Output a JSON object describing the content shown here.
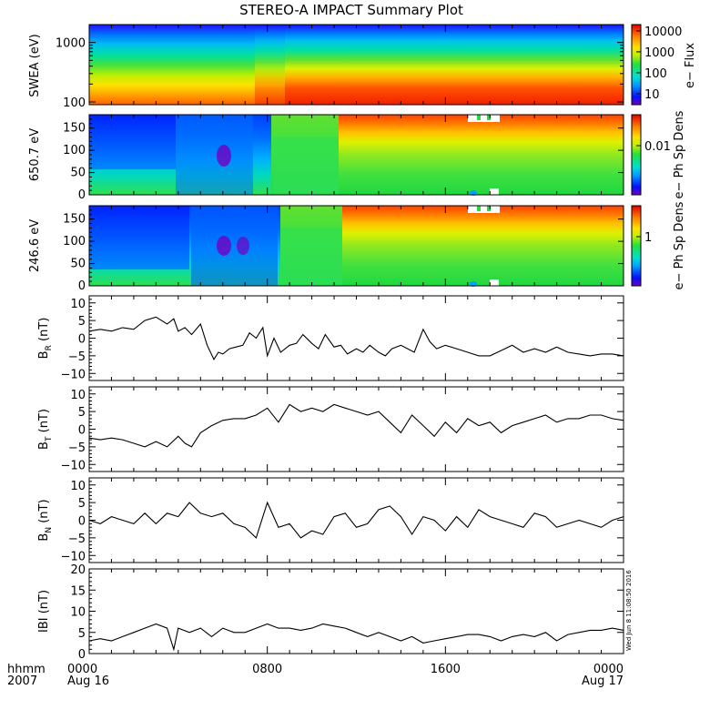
{
  "title": "STEREO-A IMPACT Summary Plot",
  "footer": {
    "hhmm": "hhmm",
    "year": "2007"
  },
  "stamp": "Wed Jun  8 11:08:50 2016",
  "chart_data": [
    {
      "type": "heatmap",
      "ylabel": "SWEA (eV)",
      "y_scale": "log",
      "ylim": [
        90,
        2000
      ],
      "yticks": [
        "1000",
        "100"
      ],
      "colorbar_label": "e− Flux",
      "colorbar_scale": "log",
      "colorbar_ticks": [
        "10000",
        "1000",
        "100",
        "10"
      ],
      "colorbar_range": [
        3,
        20000
      ]
    },
    {
      "type": "heatmap",
      "ylabel": "650.7 eV",
      "ylim": [
        0,
        180
      ],
      "yticks": [
        "150",
        "100",
        "50",
        "0"
      ],
      "colorbar_label": "e− Ph Sp Dens",
      "colorbar_scale": "log",
      "colorbar_ticks": [
        "0.01"
      ]
    },
    {
      "type": "heatmap",
      "ylabel": "246.6 eV",
      "ylim": [
        0,
        180
      ],
      "yticks": [
        "150",
        "100",
        "50",
        "0"
      ],
      "colorbar_label": "e− Ph Sp Dens",
      "colorbar_scale": "log",
      "colorbar_ticks": [
        "1"
      ]
    },
    {
      "type": "line",
      "ylabel": "B",
      "ylabel_sub": "R",
      "ylabel_unit": "(nT)",
      "ylim": [
        -12,
        12
      ],
      "yticks": [
        "10",
        "5",
        "0",
        "−5",
        "−10"
      ],
      "ytick_values": [
        10,
        5,
        0,
        -5,
        -10
      ],
      "x": [
        0,
        0.5,
        1,
        1.5,
        2,
        2.5,
        3,
        3.5,
        3.8,
        4,
        4.3,
        4.6,
        5,
        5.3,
        5.6,
        5.8,
        6,
        6.3,
        6.6,
        6.9,
        7.2,
        7.5,
        7.8,
        8,
        8.3,
        8.6,
        9,
        9.3,
        9.6,
        10,
        10.3,
        10.6,
        11,
        11.3,
        11.6,
        12,
        12.3,
        12.6,
        13,
        13.3,
        13.6,
        14,
        14.3,
        14.6,
        15,
        15.3,
        15.6,
        16,
        16.5,
        17,
        17.5,
        18,
        18.5,
        19,
        19.5,
        20,
        20.5,
        21,
        21.5,
        22,
        22.5,
        23,
        23.5,
        24
      ],
      "y": [
        2,
        2.5,
        2,
        3,
        2.5,
        5,
        6,
        4,
        5.5,
        2,
        3,
        1,
        4,
        -2,
        -6,
        -4,
        -4.5,
        -3,
        -2.5,
        -2,
        1.5,
        0,
        3,
        -5,
        0,
        -4,
        -2,
        -1.5,
        1,
        -1.5,
        -3,
        1,
        -2.5,
        -2,
        -4.5,
        -3,
        -4,
        -2,
        -4,
        -5,
        -3,
        -2,
        -3,
        -4,
        2.5,
        -1,
        -3,
        -2,
        -3,
        -4,
        -5,
        -5,
        -3.5,
        -2,
        -4,
        -3,
        -4,
        -2.5,
        -4,
        -4.5,
        -5,
        -4.5,
        -4.5,
        -5
      ]
    },
    {
      "type": "line",
      "ylabel": "B",
      "ylabel_sub": "T",
      "ylabel_unit": "(nT)",
      "ylim": [
        -12,
        12
      ],
      "yticks": [
        "10",
        "5",
        "0",
        "−5",
        "−10"
      ],
      "ytick_values": [
        10,
        5,
        0,
        -5,
        -10
      ],
      "x": [
        0,
        0.5,
        1,
        1.5,
        2,
        2.5,
        3,
        3.5,
        4,
        4.3,
        4.6,
        5,
        5.5,
        6,
        6.5,
        7,
        7.5,
        8,
        8.5,
        9,
        9.5,
        10,
        10.5,
        11,
        11.5,
        12,
        12.5,
        13,
        13.5,
        14,
        14.5,
        15,
        15.5,
        16,
        16.5,
        17,
        17.5,
        18,
        18.5,
        19,
        19.5,
        20,
        20.5,
        21,
        21.5,
        22,
        22.5,
        23,
        23.5,
        24
      ],
      "y": [
        -2.5,
        -3,
        -2.5,
        -3,
        -4,
        -5,
        -3.5,
        -5,
        -2,
        -4,
        -5,
        -1,
        1,
        2.5,
        3,
        3,
        4,
        6,
        2,
        7,
        5,
        6,
        5,
        7,
        6,
        5,
        4,
        5,
        2,
        -1,
        4,
        1,
        -2,
        2,
        -1,
        3,
        1,
        2,
        -1,
        1,
        2,
        3,
        4,
        2,
        3,
        3,
        4,
        4,
        3,
        2.5
      ]
    },
    {
      "type": "line",
      "ylabel": "B",
      "ylabel_sub": "N",
      "ylabel_unit": "(nT)",
      "ylim": [
        -12,
        12
      ],
      "yticks": [
        "10",
        "5",
        "0",
        "−5",
        "−10"
      ],
      "ytick_values": [
        10,
        5,
        0,
        -5,
        -10
      ],
      "x": [
        0,
        0.5,
        1,
        1.5,
        2,
        2.5,
        3,
        3.5,
        4,
        4.5,
        5,
        5.5,
        6,
        6.5,
        7,
        7.5,
        8,
        8.5,
        9,
        9.5,
        10,
        10.5,
        11,
        11.5,
        12,
        12.5,
        13,
        13.5,
        14,
        14.5,
        15,
        15.5,
        16,
        16.5,
        17,
        17.5,
        18,
        18.5,
        19,
        19.5,
        20,
        20.5,
        21,
        21.5,
        22,
        22.5,
        23,
        23.5,
        24
      ],
      "y": [
        0,
        -1,
        1,
        0,
        -1,
        2,
        -1,
        2,
        1,
        5,
        2,
        1,
        2,
        -1,
        -2,
        -5,
        5,
        -2,
        -1,
        -5,
        -3,
        -4,
        1,
        2,
        -2,
        -1,
        3,
        4,
        1,
        -4,
        1,
        0,
        -3,
        1,
        -2,
        3,
        1,
        0,
        -1,
        -2,
        2,
        1,
        -2,
        -1,
        0,
        -1,
        -2,
        0,
        1
      ]
    },
    {
      "type": "line",
      "ylabel": "|B|",
      "ylabel_unit": "(nT)",
      "ylabel_text": "IBI (nT)",
      "ylim": [
        0,
        20
      ],
      "yticks": [
        "20",
        "15",
        "10",
        "5",
        "0"
      ],
      "ytick_values": [
        20,
        15,
        10,
        5,
        0
      ],
      "x": [
        0,
        0.5,
        1,
        1.5,
        2,
        2.5,
        3,
        3.5,
        3.8,
        4,
        4.5,
        5,
        5.5,
        6,
        6.5,
        7,
        7.5,
        8,
        8.5,
        9,
        9.5,
        10,
        10.5,
        11,
        11.5,
        12,
        12.5,
        13,
        13.5,
        14,
        14.5,
        15,
        15.5,
        16,
        16.5,
        17,
        17.5,
        18,
        18.5,
        19,
        19.5,
        20,
        20.5,
        21,
        21.5,
        22,
        22.5,
        23,
        23.5,
        24
      ],
      "y": [
        3,
        3.5,
        3,
        4,
        5,
        6,
        7,
        6,
        1,
        6,
        5,
        6,
        4,
        6,
        5,
        5,
        6,
        7,
        6,
        6,
        5.5,
        6,
        7,
        6.5,
        6,
        5,
        4,
        5,
        4,
        3,
        4,
        2.5,
        3,
        3.5,
        4,
        4.5,
        4.5,
        4,
        3,
        4,
        4.5,
        4,
        5,
        3,
        4.5,
        5,
        5.5,
        5.5,
        6,
        5.5
      ]
    }
  ],
  "xaxis": {
    "ticks": [
      "0000",
      "0800",
      "1600",
      "0000"
    ],
    "tick_hours": [
      0,
      8,
      16,
      24
    ],
    "dates": [
      "Aug 16",
      "Aug 17"
    ],
    "range_hours": [
      0,
      24
    ]
  }
}
